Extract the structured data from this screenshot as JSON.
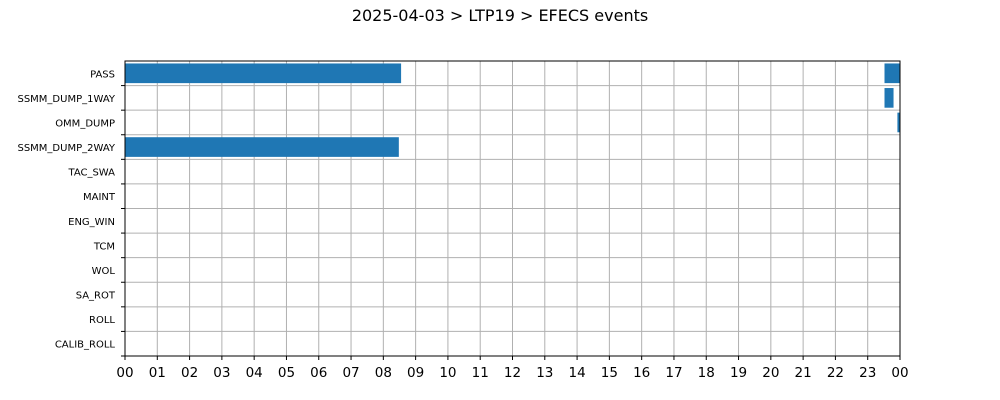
{
  "chart_data": {
    "type": "bar",
    "orientation": "horizontal",
    "subtype": "timeline",
    "title": "2025-04-03 > LTP19 > EFECS events",
    "xlabel": "",
    "ylabel": "",
    "x_unit": "hours",
    "xlim": [
      0,
      24
    ],
    "x_tick_labels": [
      "00",
      "01",
      "02",
      "03",
      "04",
      "05",
      "06",
      "07",
      "08",
      "09",
      "10",
      "11",
      "12",
      "13",
      "14",
      "15",
      "16",
      "17",
      "18",
      "19",
      "20",
      "21",
      "22",
      "23",
      "00"
    ],
    "categories": [
      "PASS",
      "SSMM_DUMP_1WAY",
      "OMM_DUMP",
      "SSMM_DUMP_2WAY",
      "TAC_SWA",
      "MAINT",
      "ENG_WIN",
      "TCM",
      "WOL",
      "SA_ROT",
      "ROLL",
      "CALIB_ROLL"
    ],
    "intervals": [
      {
        "category": "PASS",
        "start": 0.0,
        "end": 8.55
      },
      {
        "category": "PASS",
        "start": 23.52,
        "end": 24.0
      },
      {
        "category": "SSMM_DUMP_1WAY",
        "start": 23.52,
        "end": 23.8
      },
      {
        "category": "OMM_DUMP",
        "start": 23.92,
        "end": 24.0
      },
      {
        "category": "SSMM_DUMP_2WAY",
        "start": 0.0,
        "end": 8.48
      }
    ],
    "grid": true,
    "legend": "none",
    "bar_color": "#1f77b4",
    "grid_color": "#b0b0b0"
  }
}
